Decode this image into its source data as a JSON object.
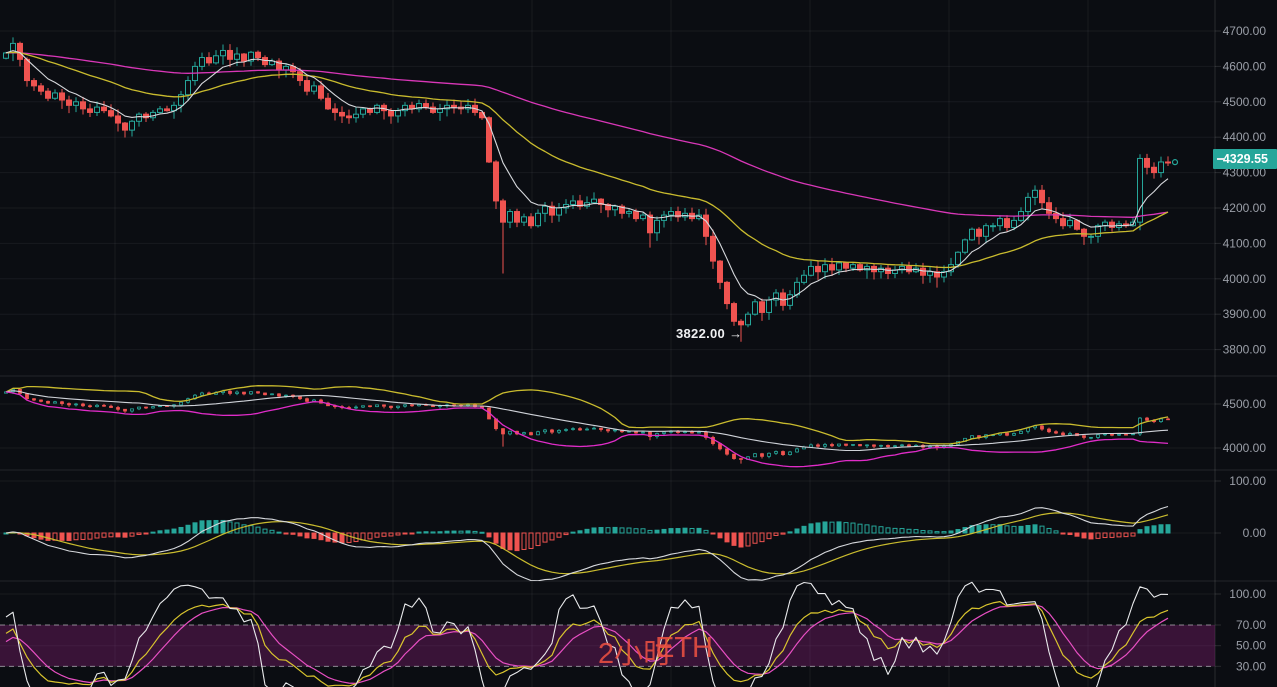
{
  "watermark": {
    "part1": "2小时",
    "part2": "ETH"
  },
  "price_badge": {
    "value": "4329.55"
  },
  "low_label": {
    "text": "3822.00",
    "arrow": "→"
  },
  "colors": {
    "background": "#0b0d12",
    "up": "#26a69a",
    "down": "#ef5350",
    "ma_fast_white": "#d6d8dc",
    "ma_mid_yellow": "#c9bb2e",
    "ma_slow_magenta": "#d937b8",
    "boll_upper_yellow": "#c9bb2e",
    "boll_mid_white": "#cfd2d8",
    "boll_lower_magenta": "#e02cc8",
    "macd_dif_white": "#d6d8dc",
    "macd_dea_yellow": "#c9bb2e",
    "kdj_k_yellow": "#d9c52e",
    "kdj_d_magenta": "#e84fc3",
    "kdj_j_white": "#e9eaec",
    "kdj_band_fill": "rgba(146,32,130,0.34)",
    "kdj_band_dash": "rgba(230,230,235,0.55)",
    "grid": "rgba(255,255,255,0.055)",
    "separator": "rgba(255,255,255,0.10)",
    "axis_line": "rgba(255,255,255,0.12)",
    "axis_text": "#9b9fa8",
    "badge_bg": "#26a69a",
    "badge_text": "#ffffff",
    "low_label_text": "#f0f1f3",
    "watermark_text": "rgba(235,80,66,0.88)",
    "last_price_marker": "#26a69a"
  },
  "chart_data": {
    "type": "candlestick+indicators",
    "timeframe_watermark": "2小时ETH",
    "current_price": 4329.55,
    "annotation": {
      "text": "3822.00",
      "price": 3822,
      "candle_index": 105
    },
    "panels": [
      {
        "name": "price-candles-ma",
        "ticks": [
          4700,
          4600,
          4500,
          4400,
          4300,
          4200,
          4100,
          4000,
          3900,
          3800
        ],
        "ylim": [
          3720,
          4790
        ]
      },
      {
        "name": "price-bollinger-bars",
        "ticks": [
          4500,
          4000
        ],
        "ylim": [
          3760,
          4820
        ]
      },
      {
        "name": "macd",
        "ticks": [
          100,
          0
        ],
        "ylim": [
          -120,
          120
        ]
      },
      {
        "name": "kdj",
        "ticks": [
          100,
          70,
          50,
          30
        ],
        "band": [
          70,
          30
        ],
        "ylim": [
          -30,
          130
        ]
      }
    ],
    "indicators": {
      "ma_periods_price": [
        7,
        30,
        99
      ],
      "bollinger": [
        20,
        2
      ],
      "macd": [
        12,
        26,
        9
      ],
      "kdj": [
        9,
        3,
        3
      ]
    },
    "closes": [
      4638,
      4665,
      4620,
      4560,
      4545,
      4530,
      4510,
      4525,
      4505,
      4490,
      4500,
      4480,
      4470,
      4485,
      4475,
      4460,
      4440,
      4420,
      4445,
      4465,
      4455,
      4470,
      4480,
      4475,
      4490,
      4520,
      4560,
      4600,
      4625,
      4610,
      4630,
      4645,
      4620,
      4635,
      4615,
      4640,
      4625,
      4605,
      4615,
      4590,
      4600,
      4585,
      4560,
      4530,
      4545,
      4510,
      4480,
      4470,
      4460,
      4455,
      4465,
      4480,
      4470,
      4490,
      4475,
      4460,
      4475,
      4490,
      4480,
      4495,
      4485,
      4470,
      4480,
      4490,
      4485,
      4480,
      4490,
      4470,
      4455,
      4330,
      4220,
      4160,
      4190,
      4160,
      4175,
      4150,
      4185,
      4205,
      4180,
      4200,
      4210,
      4220,
      4205,
      4215,
      4225,
      4210,
      4195,
      4205,
      4185,
      4190,
      4170,
      4180,
      4130,
      4165,
      4180,
      4190,
      4175,
      4185,
      4170,
      4180,
      4120,
      4050,
      3990,
      3930,
      3880,
      3870,
      3900,
      3935,
      3905,
      3940,
      3960,
      3925,
      3955,
      3990,
      4010,
      4035,
      4020,
      4040,
      4025,
      4045,
      4030,
      4040,
      4025,
      4035,
      4020,
      4030,
      4015,
      4025,
      4035,
      4020,
      4030,
      4010,
      4020,
      4005,
      4020,
      4040,
      4075,
      4110,
      4140,
      4120,
      4150,
      4150,
      4170,
      4145,
      4165,
      4190,
      4230,
      4250,
      4215,
      4185,
      4170,
      4150,
      4165,
      4140,
      4120,
      4120,
      4150,
      4160,
      4145,
      4155,
      4150,
      4160,
      4340,
      4315,
      4300,
      4330,
      4329.55
    ],
    "wick_overrides": [
      {
        "i": 1,
        "high": 4682
      },
      {
        "i": 71,
        "low": 4015
      },
      {
        "i": 92,
        "low": 4088
      },
      {
        "i": 105,
        "low": 3822
      },
      {
        "i": 133,
        "low": 3975
      },
      {
        "i": 162,
        "high": 4352
      }
    ]
  }
}
